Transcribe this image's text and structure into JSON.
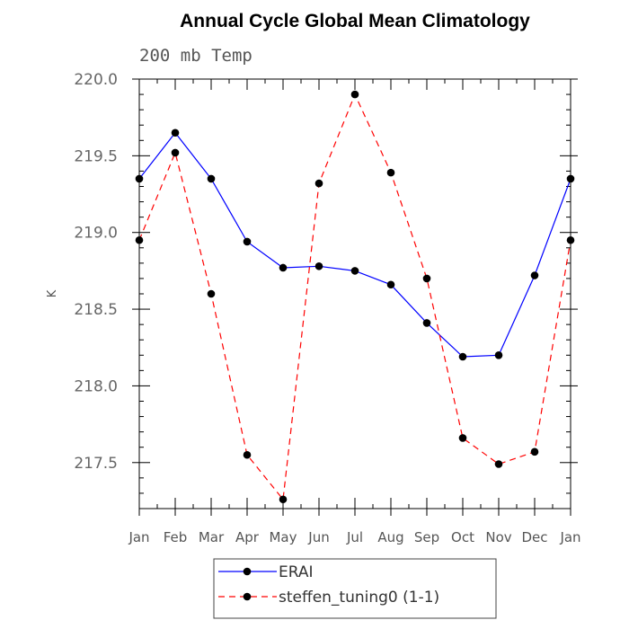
{
  "chart_data": {
    "type": "line",
    "title": "Annual Cycle Global Mean Climatology",
    "subtitle": "200 mb Temp",
    "xlabel": "",
    "ylabel": "K",
    "x": [
      "Jan",
      "Feb",
      "Mar",
      "Apr",
      "May",
      "Jun",
      "Jul",
      "Aug",
      "Sep",
      "Oct",
      "Nov",
      "Dec",
      "Jan"
    ],
    "ylim": [
      217.2,
      220.0
    ],
    "yticks": [
      217.5,
      218.0,
      218.5,
      219.0,
      219.5,
      220.0
    ],
    "ytick_labels": [
      "217.5",
      "218.0",
      "218.5",
      "219.0",
      "219.5",
      "220.0"
    ],
    "grid": false,
    "legend_position": "bottom",
    "series": [
      {
        "name": "ERAI",
        "color": "#0000ff",
        "line_style": "solid",
        "marker": "filled-circle",
        "values": [
          219.35,
          219.65,
          219.35,
          218.94,
          218.77,
          218.78,
          218.75,
          218.66,
          218.41,
          218.19,
          218.2,
          218.72,
          219.35
        ]
      },
      {
        "name": "steffen_tuning0 (1-1)",
        "color": "#ff0000",
        "line_style": "dashed",
        "marker": "filled-circle",
        "values": [
          218.95,
          219.52,
          218.6,
          217.55,
          217.26,
          219.32,
          219.9,
          219.39,
          218.7,
          217.66,
          217.49,
          217.57,
          218.95
        ]
      }
    ]
  }
}
